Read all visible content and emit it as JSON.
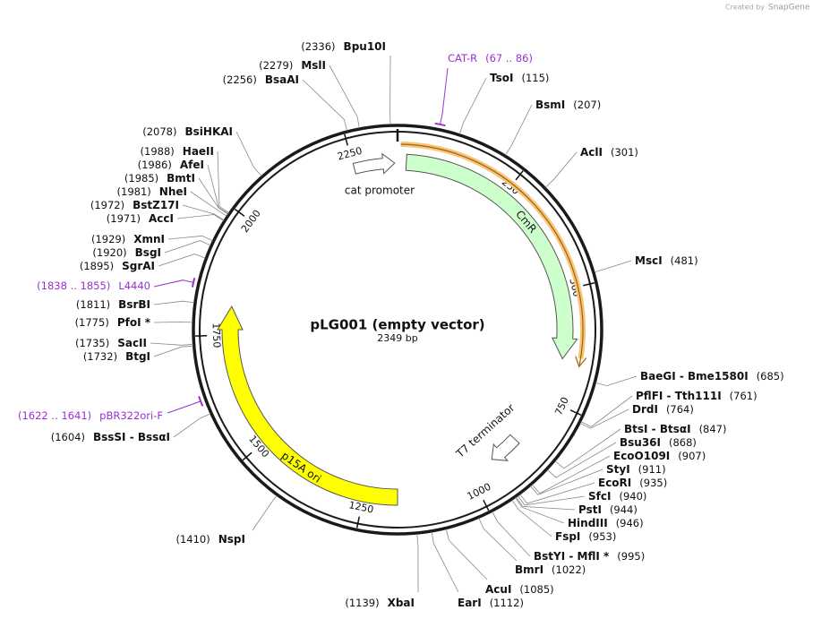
{
  "watermark": {
    "created_by": "Created by",
    "brand": "SnapGene"
  },
  "map": {
    "name": "pLG001 (empty vector)",
    "length": "2349 bp",
    "ticks": [
      250,
      500,
      750,
      1000,
      1250,
      1500,
      1750,
      2000,
      2250
    ],
    "features": [
      {
        "label": "CmR"
      },
      {
        "label": "cat promoter"
      },
      {
        "label": "p15A ori"
      },
      {
        "label": "T7 terminator"
      }
    ],
    "primers": [
      {
        "label": "CAT-R",
        "range": "(67 .. 86)"
      },
      {
        "label": "L4440",
        "range": "(1838 .. 1855)"
      },
      {
        "label": "pBR322ori-F",
        "range": "(1622 .. 1641)"
      }
    ],
    "sites": [
      {
        "name": "TsoI",
        "position": "(115)"
      },
      {
        "name": "BsmI",
        "position": "(207)"
      },
      {
        "name": "AclI",
        "position": "(301)"
      },
      {
        "name": "MscI",
        "position": "(481)"
      },
      {
        "name": "BaeGI - Bme1580I",
        "position": "(685)"
      },
      {
        "name": "PflFI - Tth111I",
        "position": "(761)"
      },
      {
        "name": "DrdI",
        "position": "(764)"
      },
      {
        "name": "BtsI - BtsαI",
        "position": "(847)"
      },
      {
        "name": "Bsu36I",
        "position": "(868)"
      },
      {
        "name": "EcoO109I",
        "position": "(907)"
      },
      {
        "name": "StyI",
        "position": "(911)"
      },
      {
        "name": "EcoRI",
        "position": "(935)"
      },
      {
        "name": "SfcI",
        "position": "(940)"
      },
      {
        "name": "PstI",
        "position": "(944)"
      },
      {
        "name": "HindIII",
        "position": "(946)"
      },
      {
        "name": "FspI",
        "position": "(953)"
      },
      {
        "name": "BstYI - MflI *",
        "position": "(995)"
      },
      {
        "name": "BmrI",
        "position": "(1022)"
      },
      {
        "name": "AcuI",
        "position": "(1085)"
      },
      {
        "name": "EarI",
        "position": "(1112)"
      },
      {
        "name": "XbaI",
        "position": "(1139)"
      },
      {
        "name": "NspI",
        "position": "(1410)"
      },
      {
        "name": "BssSI - BssαI",
        "position": "(1604)"
      },
      {
        "name": "BtgI",
        "position": "(1732)"
      },
      {
        "name": "SacII",
        "position": "(1735)"
      },
      {
        "name": "PfoI *",
        "position": "(1775)"
      },
      {
        "name": "BsrBI",
        "position": "(1811)"
      },
      {
        "name": "SgrAI",
        "position": "(1895)"
      },
      {
        "name": "BsgI",
        "position": "(1920)"
      },
      {
        "name": "XmnI",
        "position": "(1929)"
      },
      {
        "name": "AccI",
        "position": "(1971)"
      },
      {
        "name": "BstZ17I",
        "position": "(1972)"
      },
      {
        "name": "NheI",
        "position": "(1981)"
      },
      {
        "name": "BmtI",
        "position": "(1985)"
      },
      {
        "name": "AfeI",
        "position": "(1986)"
      },
      {
        "name": "HaeII",
        "position": "(1988)"
      },
      {
        "name": "BsiHKAI",
        "position": "(2078)"
      },
      {
        "name": "BsaAI",
        "position": "(2256)"
      },
      {
        "name": "MslI",
        "position": "(2279)"
      },
      {
        "name": "Bpu10I",
        "position": "(2336)"
      }
    ]
  }
}
